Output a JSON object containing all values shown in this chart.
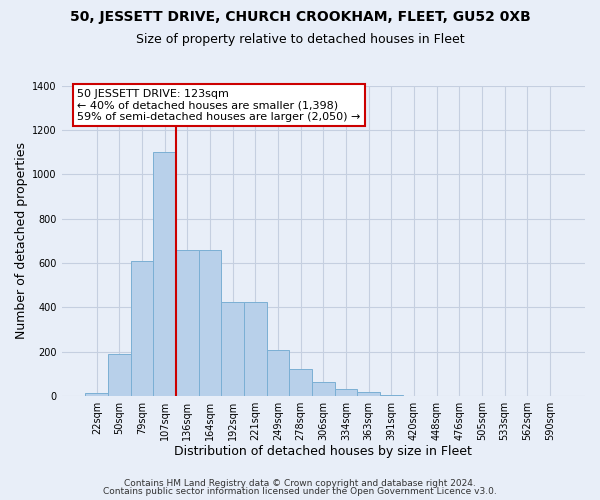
{
  "title": "50, JESSETT DRIVE, CHURCH CROOKHAM, FLEET, GU52 0XB",
  "subtitle": "Size of property relative to detached houses in Fleet",
  "xlabel": "Distribution of detached houses by size in Fleet",
  "ylabel": "Number of detached properties",
  "footnote1": "Contains HM Land Registry data © Crown copyright and database right 2024.",
  "footnote2": "Contains public sector information licensed under the Open Government Licence v3.0.",
  "bar_labels": [
    "22sqm",
    "50sqm",
    "79sqm",
    "107sqm",
    "136sqm",
    "164sqm",
    "192sqm",
    "221sqm",
    "249sqm",
    "278sqm",
    "306sqm",
    "334sqm",
    "363sqm",
    "391sqm",
    "420sqm",
    "448sqm",
    "476sqm",
    "505sqm",
    "533sqm",
    "562sqm",
    "590sqm"
  ],
  "bar_values": [
    15,
    190,
    610,
    1100,
    660,
    660,
    425,
    425,
    210,
    120,
    65,
    30,
    20,
    5,
    0,
    0,
    0,
    0,
    0,
    0,
    0
  ],
  "bar_color": "#b8d0ea",
  "bar_edgecolor": "#7bafd4",
  "vline_x": 3.5,
  "vline_color": "#cc0000",
  "ylim": [
    0,
    1400
  ],
  "yticks": [
    0,
    200,
    400,
    600,
    800,
    1000,
    1200,
    1400
  ],
  "annotation_title": "50 JESSETT DRIVE: 123sqm",
  "annotation_line1": "← 40% of detached houses are smaller (1,398)",
  "annotation_line2": "59% of semi-detached houses are larger (2,050) →",
  "box_facecolor": "white",
  "box_edgecolor": "#cc0000",
  "background_color": "#e8eef8",
  "grid_color": "#c5cfe0",
  "title_fontsize": 10,
  "subtitle_fontsize": 9,
  "annot_fontsize": 8,
  "tick_fontsize": 7,
  "axis_label_fontsize": 9,
  "footnote_fontsize": 6.5
}
